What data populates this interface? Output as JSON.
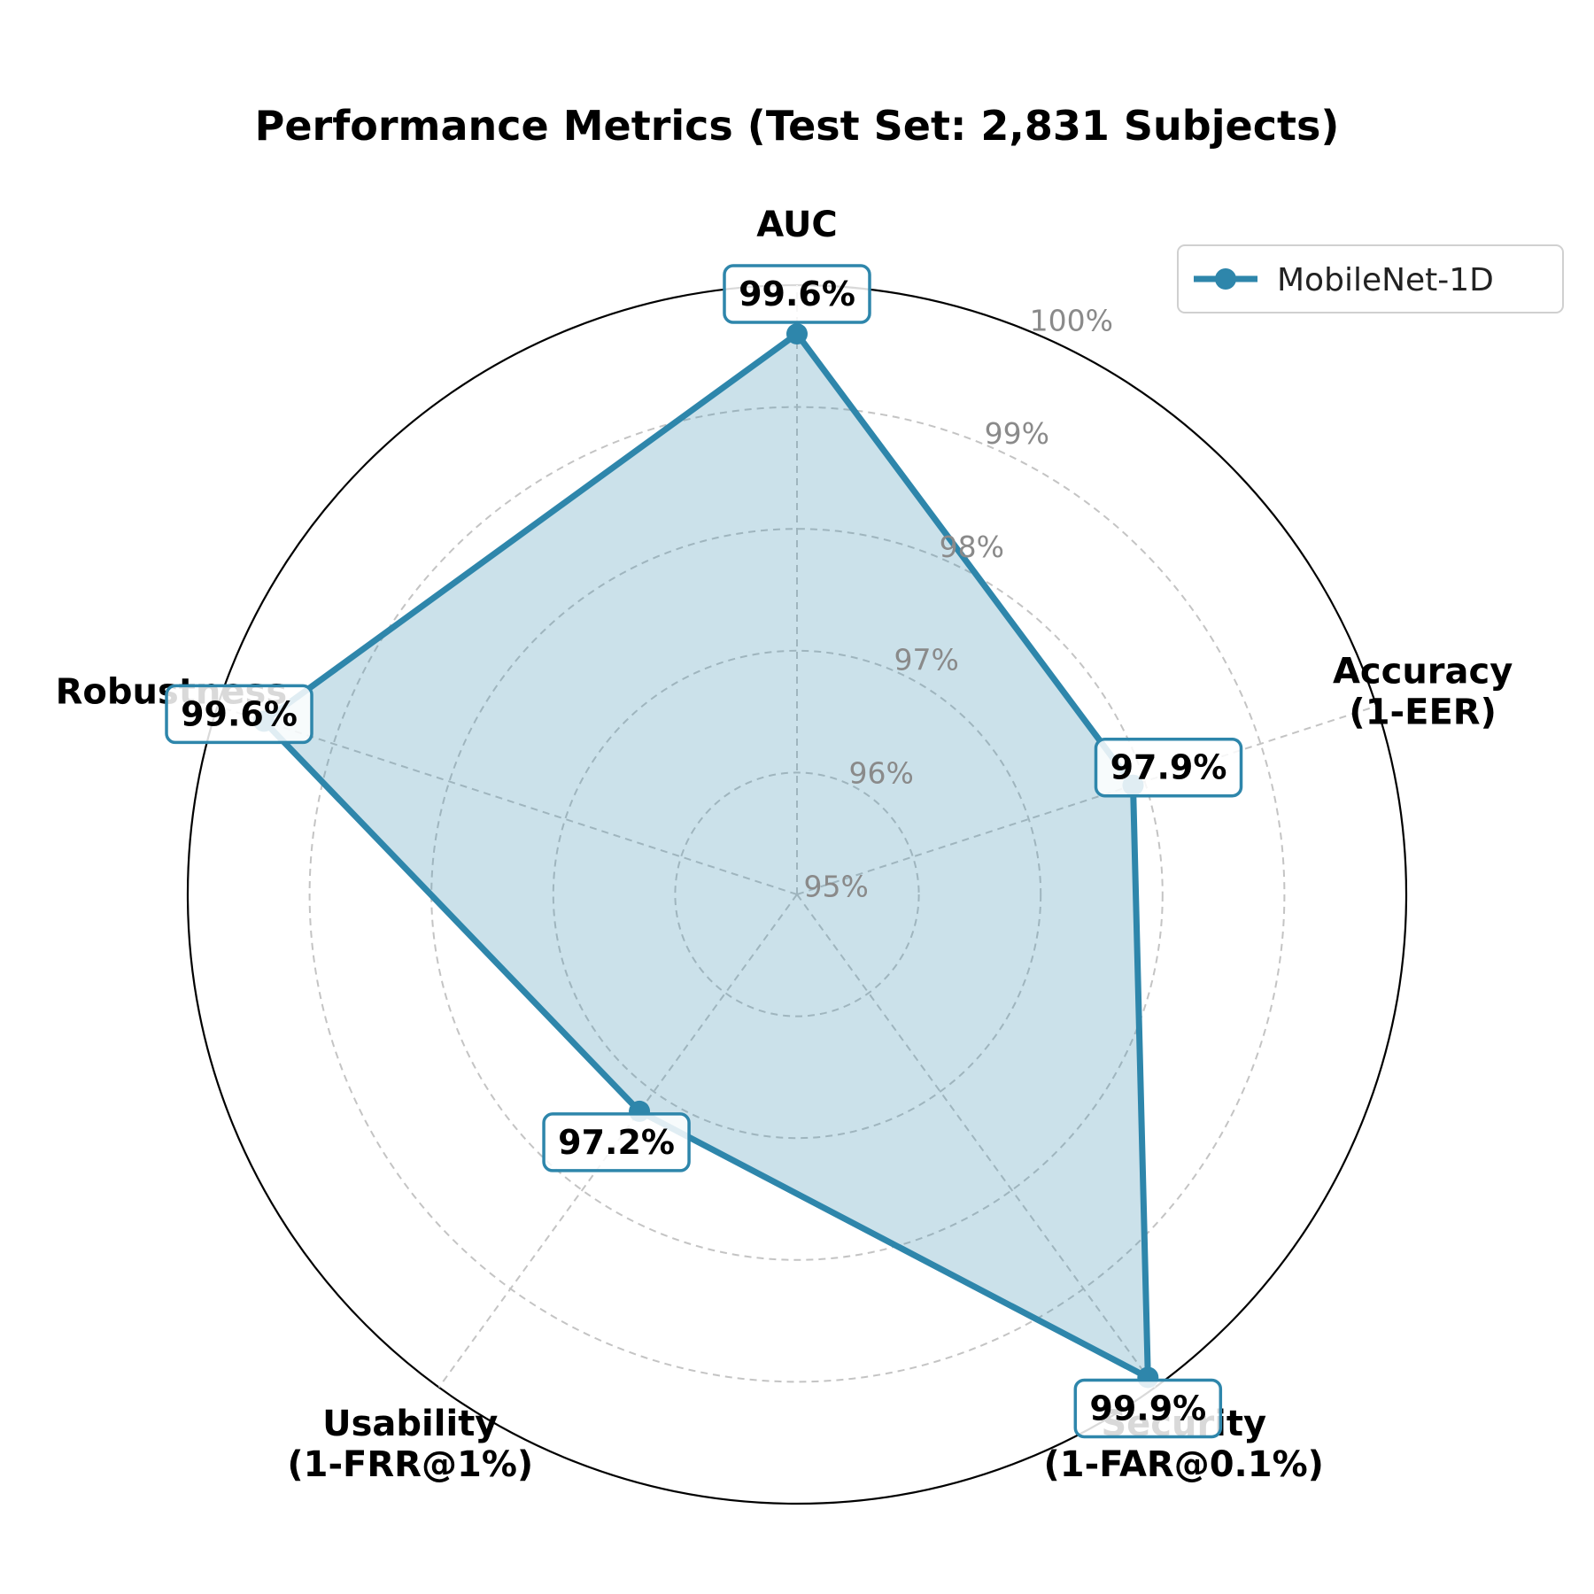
{
  "chart_data": {
    "type": "radar",
    "title": "Performance Metrics (Test Set: 2,831 Subjects)",
    "axes": [
      {
        "label_lines": [
          "AUC"
        ]
      },
      {
        "label_lines": [
          "Accuracy",
          "(1-EER)"
        ]
      },
      {
        "label_lines": [
          "Security",
          "(1-FAR@0.1%)"
        ]
      },
      {
        "label_lines": [
          "Usability",
          "(1-FRR@1%)"
        ]
      },
      {
        "label_lines": [
          "Robustness"
        ]
      }
    ],
    "rlim": [
      95,
      100
    ],
    "rticks": [
      95,
      96,
      97,
      98,
      99,
      100
    ],
    "rtick_labels": [
      "95%",
      "96%",
      "97%",
      "98%",
      "99%",
      "100%"
    ],
    "grid": true,
    "legend_position": "top-right",
    "series": [
      {
        "name": "MobileNet-1D",
        "values": [
          99.6,
          97.9,
          99.9,
          97.2,
          99.6
        ],
        "value_labels": [
          "99.6%",
          "97.9%",
          "99.9%",
          "97.2%",
          "99.6%"
        ],
        "color": "#2e86ab",
        "fill_color": "#2e86ab"
      }
    ]
  }
}
